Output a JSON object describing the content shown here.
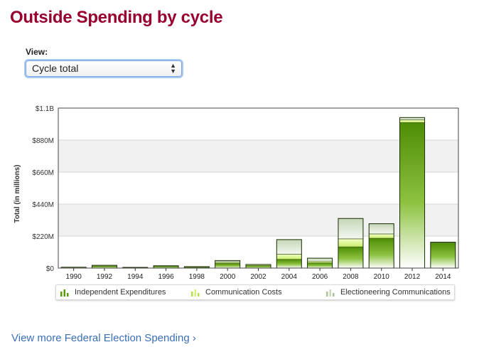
{
  "page": {
    "title": "Outside Spending by cycle",
    "view_label": "View:",
    "view_select_value": "Cycle total",
    "more_link": "View more Federal Election Spending ›"
  },
  "colors": {
    "title": "#98002e",
    "independent": "#5a9b0a",
    "communication": "#d4f07a",
    "electioneering": "#c7d8bd",
    "link": "#3b6fb6"
  },
  "chart_data": {
    "type": "bar",
    "stacked": true,
    "title": "",
    "xlabel": "",
    "ylabel": "Total (in millions)",
    "ylim": [
      0,
      1100000000
    ],
    "yticks": [
      0,
      220000000,
      440000000,
      660000000,
      880000000,
      1100000000
    ],
    "ytick_labels": [
      "$0",
      "$220M",
      "$440M",
      "$660M",
      "$880M",
      "$1.1B"
    ],
    "categories": [
      "1990",
      "1992",
      "1994",
      "1996",
      "1998",
      "2000",
      "2002",
      "2004",
      "2006",
      "2008",
      "2010",
      "2012",
      "2014"
    ],
    "series": [
      {
        "name": "Independent Expenditures",
        "icon": "independent-expenditures-icon",
        "values": [
          5000000,
          15000000,
          4000000,
          12000000,
          7000000,
          32000000,
          17000000,
          60000000,
          36000000,
          146000000,
          205000000,
          1000000000,
          175000000
        ]
      },
      {
        "name": "Communication Costs",
        "icon": "communication-costs-icon",
        "values": [
          1000000,
          4000000,
          1000000,
          4000000,
          3000000,
          10000000,
          8000000,
          36000000,
          12000000,
          55000000,
          30000000,
          20000000,
          3000000
        ]
      },
      {
        "name": "Electioneering Communications",
        "icon": "electioneering-communications-icon",
        "values": [
          0,
          0,
          0,
          0,
          0,
          10000000,
          0,
          100000000,
          20000000,
          140000000,
          70000000,
          15000000,
          0
        ]
      }
    ],
    "grid": true,
    "legend": "bottom"
  }
}
